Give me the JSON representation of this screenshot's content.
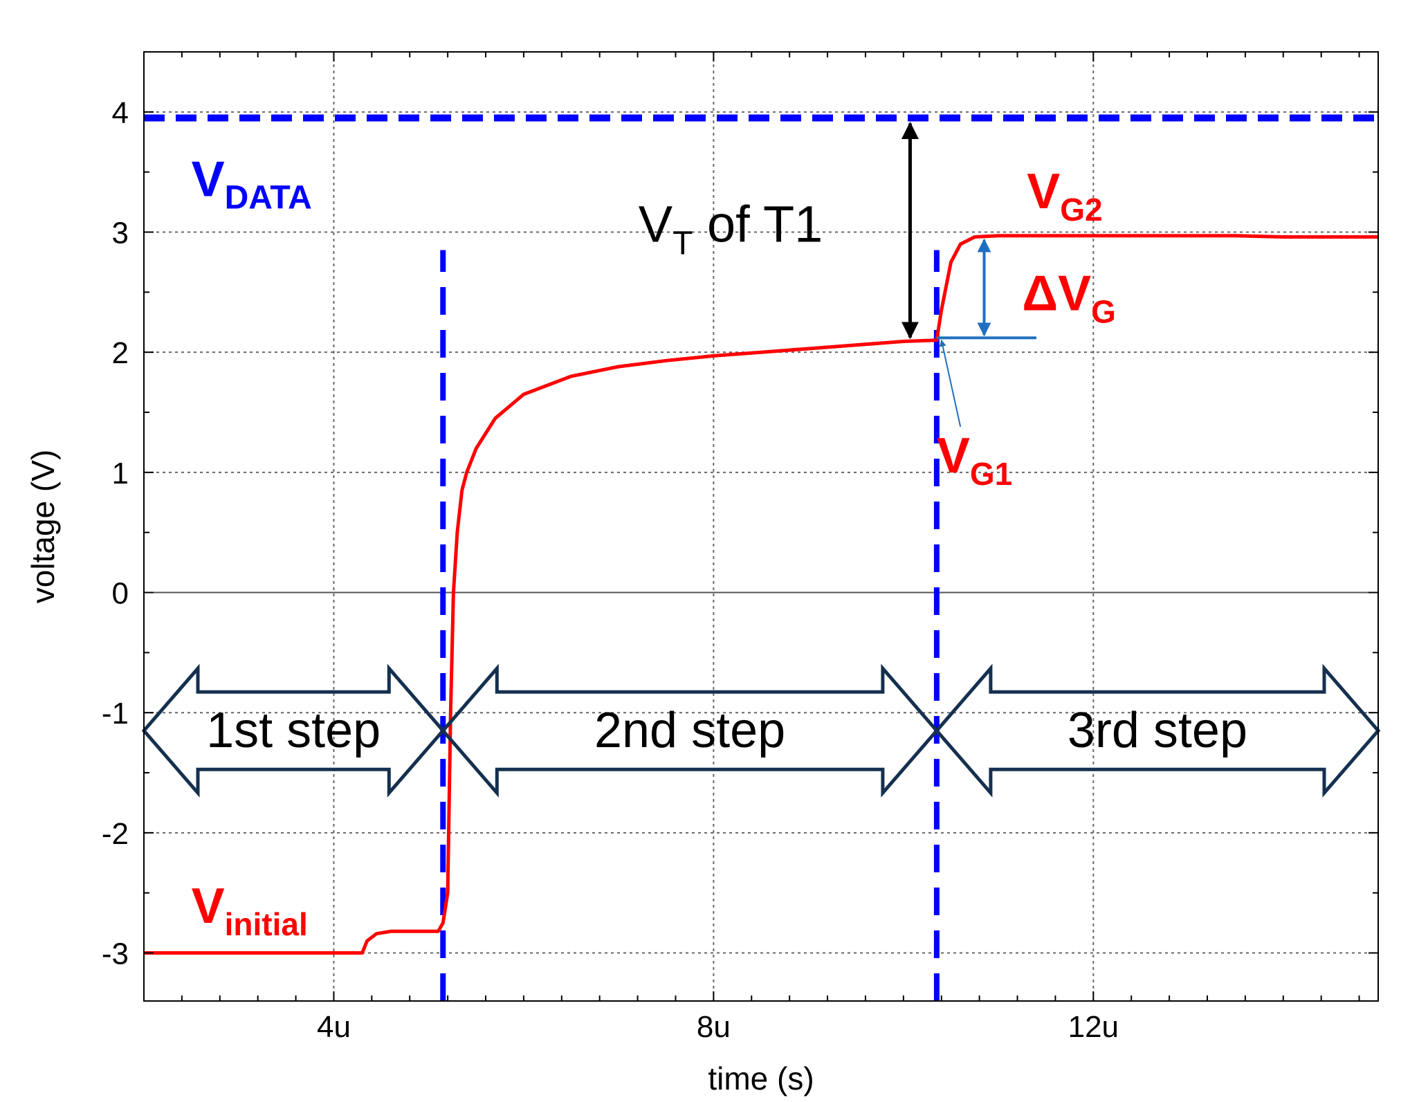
{
  "chart_data": {
    "type": "line",
    "xlabel": "time (s)",
    "ylabel": "voltage (V)",
    "xlim": [
      2,
      15
    ],
    "ylim": [
      -3.4,
      4.5
    ],
    "grid": true,
    "x_ticks": [
      {
        "value": 4,
        "label": "4u"
      },
      {
        "value": 8,
        "label": "8u"
      },
      {
        "value": 12,
        "label": "12u"
      }
    ],
    "x_minor_ticks": [
      2.4,
      2.8,
      3.2,
      3.6,
      4.4,
      4.8,
      5.2,
      5.6,
      6.0,
      6.4,
      6.8,
      7.2,
      7.6,
      8.4,
      8.8,
      9.2,
      9.6,
      10.0,
      10.4,
      10.8,
      11.2,
      11.6,
      12.4,
      12.8,
      13.2,
      13.6,
      14.0,
      14.4,
      14.8
    ],
    "y_ticks": [
      {
        "value": 4,
        "label": "4"
      },
      {
        "value": 3,
        "label": "3"
      },
      {
        "value": 2,
        "label": "2"
      },
      {
        "value": 1,
        "label": "1"
      },
      {
        "value": 0,
        "label": "0"
      },
      {
        "value": -1,
        "label": "-1"
      },
      {
        "value": -2,
        "label": "-2"
      },
      {
        "value": -3,
        "label": "-3"
      }
    ],
    "y_minor_ticks": [
      4.5,
      3.5,
      2.5,
      1.5,
      0.5,
      -0.5,
      -1.5,
      -2.5
    ],
    "series": [
      {
        "name": "V_G",
        "color": "#ff0000",
        "x": [
          2.0,
          4.3,
          4.35,
          4.45,
          4.6,
          4.8,
          5.0,
          5.1,
          5.15,
          5.2,
          5.23,
          5.26,
          5.3,
          5.35,
          5.4,
          5.5,
          5.7,
          6.0,
          6.5,
          7.0,
          7.5,
          8.0,
          8.5,
          9.0,
          9.5,
          10.0,
          10.35,
          10.4,
          10.5,
          10.6,
          10.75,
          11.0,
          12.0,
          13.0,
          13.5,
          14.0,
          15.0
        ],
        "y": [
          -3.0,
          -3.0,
          -2.9,
          -2.84,
          -2.82,
          -2.82,
          -2.82,
          -2.82,
          -2.75,
          -2.5,
          -1.0,
          0.0,
          0.5,
          0.85,
          1.0,
          1.2,
          1.45,
          1.65,
          1.8,
          1.88,
          1.93,
          1.97,
          2.0,
          2.03,
          2.06,
          2.09,
          2.1,
          2.35,
          2.75,
          2.9,
          2.96,
          2.97,
          2.97,
          2.97,
          2.97,
          2.96,
          2.96
        ]
      }
    ],
    "reference_lines": [
      {
        "name": "V_DATA",
        "orientation": "horizontal",
        "value": 3.95,
        "color": "#0000ff",
        "style": "dashed"
      },
      {
        "name": "step-boundary-1",
        "orientation": "vertical",
        "value": 5.15,
        "y_from": -3.4,
        "y_to": 2.85,
        "color": "#0000ff",
        "style": "dashed"
      },
      {
        "name": "step-boundary-2",
        "orientation": "vertical",
        "value": 10.35,
        "y_from": -3.4,
        "y_to": 2.85,
        "color": "#0000ff",
        "style": "dashed"
      }
    ],
    "annotations": {
      "v_data": {
        "main": "V",
        "sub": "DATA",
        "color": "#0000ff",
        "x": 2.5,
        "y": 3.3
      },
      "v_g2": {
        "main": "V",
        "sub": "G2",
        "color": "#ff0000",
        "x": 11.3,
        "y": 3.2
      },
      "delta_vg": {
        "main": "ΔV",
        "sub": "G",
        "color": "#ff0000",
        "x": 11.25,
        "y": 2.35
      },
      "v_g1": {
        "main": "V",
        "sub": "G1",
        "color": "#ff0000",
        "x": 10.35,
        "y": 1.0
      },
      "v_initial": {
        "main": "V",
        "sub": "initial",
        "color": "#ff0000",
        "x": 2.5,
        "y": -2.75
      },
      "vt": {
        "main": "V",
        "sub": "T",
        "rest": " of T1",
        "color": "#000000",
        "x": 7.5,
        "y": 2.92
      },
      "vt_arrow": {
        "x": 10.07,
        "y_from": 3.95,
        "y_to": 2.1,
        "color": "#000000"
      },
      "delta_arrow": {
        "x": 10.85,
        "y_from": 2.97,
        "y_to": 2.12,
        "color": "#1f6fc0"
      },
      "vg1_marker": {
        "x_from": 10.35,
        "x_to": 11.4,
        "y": 2.12,
        "color": "#1f6fc0"
      },
      "vg1_pointer": {
        "x_from": 10.6,
        "y_from": 1.38,
        "x_to": 10.4,
        "y_to": 2.1,
        "color": "#1f6fc0"
      }
    },
    "steps": [
      {
        "label": "1st step",
        "x_from": 2.0,
        "x_to": 5.15,
        "y": -1.15
      },
      {
        "label": "2nd step",
        "x_from": 5.15,
        "x_to": 10.35,
        "y": -1.15
      },
      {
        "label": "3rd step",
        "x_from": 10.35,
        "x_to": 15.0,
        "y": -1.15
      }
    ]
  }
}
